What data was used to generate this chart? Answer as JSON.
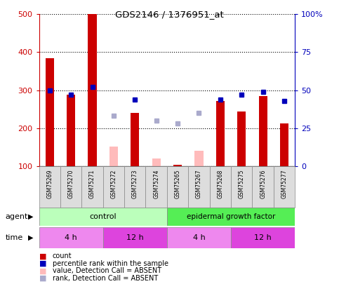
{
  "title": "GDS2146 / 1376951_at",
  "samples": [
    "GSM75269",
    "GSM75270",
    "GSM75271",
    "GSM75272",
    "GSM75273",
    "GSM75274",
    "GSM75265",
    "GSM75267",
    "GSM75268",
    "GSM75275",
    "GSM75276",
    "GSM75277"
  ],
  "count_values": [
    385,
    288,
    502,
    null,
    240,
    null,
    104,
    null,
    272,
    244,
    285,
    213
  ],
  "count_absent": [
    null,
    null,
    null,
    152,
    null,
    120,
    null,
    140,
    null,
    null,
    null,
    null
  ],
  "rank_values_pct": [
    50,
    47,
    52,
    null,
    44,
    null,
    null,
    null,
    44,
    47,
    49,
    43
  ],
  "rank_absent_pct": [
    null,
    null,
    null,
    33,
    null,
    30,
    28,
    35,
    null,
    null,
    null,
    null
  ],
  "ylim": [
    100,
    500
  ],
  "yticks": [
    100,
    200,
    300,
    400,
    500
  ],
  "y2lim": [
    0,
    100
  ],
  "y2ticks": [
    0,
    25,
    50,
    75,
    100
  ],
  "y2ticklabels": [
    "0",
    "25",
    "50",
    "75",
    "100%"
  ],
  "bar_color_red": "#cc0000",
  "bar_color_pink": "#ffbbbb",
  "dot_color_blue": "#0000bb",
  "dot_color_light_blue": "#aaaacc",
  "agent_control_color": "#bbffbb",
  "agent_egf_color": "#55ee55",
  "time_4h_color": "#ee88ee",
  "time_12h_color": "#dd44dd",
  "sample_box_color": "#dddddd",
  "bg_color": "#ffffff"
}
